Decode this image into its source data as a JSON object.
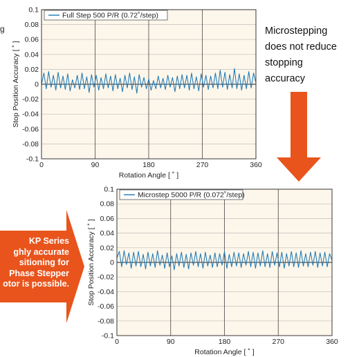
{
  "colors": {
    "series": "#1f78b4",
    "arrow": "#e8541c",
    "callout_text": "#ffffff"
  },
  "fragments": {
    "top_left": "g"
  },
  "note": {
    "lines": [
      "Microstepping",
      "does not reduce",
      "stopping",
      "accuracy"
    ]
  },
  "callout": {
    "lines": [
      "KP Series",
      "ghly accurate",
      "sitioning for",
      "Phase Stepper",
      "otor is possible."
    ]
  },
  "chart_data": [
    {
      "type": "line",
      "xlabel": "Rotation Angle [ ˚ ]",
      "ylabel": "Stop Position Accuracy [ ˚ ]",
      "xlim": [
        0,
        360
      ],
      "ylim": [
        -0.1,
        0.1
      ],
      "xticks": [
        "0",
        "90",
        "180",
        "270",
        "360"
      ],
      "yticks": [
        "0.1",
        "0.08",
        "0.06",
        "0.04",
        "0.02",
        "0",
        "-0.02",
        "-0.04",
        "-0.06",
        "-0.08",
        "-0.1"
      ],
      "grid": true,
      "legend_position": "top-left",
      "series": [
        {
          "name": "Full Step 500 P/R (0.72˚/step)",
          "x": [
            0,
            4,
            8,
            12,
            16,
            20,
            24,
            28,
            32,
            36,
            40,
            44,
            48,
            52,
            56,
            60,
            64,
            68,
            72,
            76,
            80,
            84,
            88,
            92,
            96,
            100,
            104,
            108,
            112,
            116,
            120,
            124,
            128,
            132,
            136,
            140,
            144,
            148,
            152,
            156,
            160,
            164,
            168,
            172,
            176,
            180,
            184,
            188,
            192,
            196,
            200,
            204,
            208,
            212,
            216,
            220,
            224,
            228,
            232,
            236,
            240,
            244,
            248,
            252,
            256,
            260,
            264,
            268,
            272,
            276,
            280,
            284,
            288,
            292,
            296,
            300,
            304,
            308,
            312,
            316,
            320,
            324,
            328,
            332,
            336,
            340,
            344,
            348,
            352,
            356,
            360
          ],
          "y": [
            0.0,
            0.015,
            -0.006,
            0.017,
            -0.004,
            0.012,
            -0.008,
            0.016,
            -0.005,
            0.011,
            -0.007,
            0.014,
            -0.009,
            0.006,
            -0.005,
            0.012,
            -0.007,
            0.015,
            -0.006,
            0.01,
            -0.011,
            0.013,
            -0.004,
            0.012,
            -0.008,
            0.009,
            -0.006,
            0.014,
            -0.005,
            0.011,
            -0.009,
            0.013,
            -0.006,
            0.008,
            -0.01,
            0.012,
            -0.005,
            0.015,
            -0.007,
            0.01,
            -0.012,
            0.013,
            -0.004,
            0.009,
            -0.006,
            0.007,
            -0.008,
            0.005,
            -0.006,
            0.011,
            -0.005,
            0.008,
            -0.007,
            0.012,
            -0.004,
            0.009,
            -0.01,
            0.011,
            -0.006,
            0.013,
            -0.005,
            0.012,
            -0.008,
            0.015,
            -0.006,
            0.01,
            -0.009,
            0.014,
            -0.004,
            0.012,
            -0.007,
            0.011,
            -0.005,
            0.015,
            -0.006,
            0.019,
            -0.004,
            0.016,
            -0.007,
            0.013,
            -0.005,
            0.021,
            -0.006,
            0.014,
            -0.008,
            0.012,
            -0.006,
            0.017,
            -0.005,
            0.015,
            0.002
          ]
        }
      ]
    },
    {
      "type": "line",
      "xlabel": "Rotation Angle [ ˚ ]",
      "ylabel": "Stop Position Accuracy [ ˚ ]",
      "xlim": [
        0,
        360
      ],
      "ylim": [
        -0.1,
        0.1
      ],
      "xticks": [
        "0",
        "90",
        "180",
        "270",
        "360"
      ],
      "yticks": [
        "0.1",
        "0.08",
        "0.06",
        "0.04",
        "0.02",
        "0",
        "-0.02",
        "-0.04",
        "-0.06",
        "-0.08",
        "-0.1"
      ],
      "grid": true,
      "legend_position": "top-left",
      "series": [
        {
          "name": "Microstep 5000 P/R (0.072˚/step)",
          "x": [
            0,
            4,
            8,
            12,
            16,
            20,
            24,
            28,
            32,
            36,
            40,
            44,
            48,
            52,
            56,
            60,
            64,
            68,
            72,
            76,
            80,
            84,
            88,
            92,
            96,
            100,
            104,
            108,
            112,
            116,
            120,
            124,
            128,
            132,
            136,
            140,
            144,
            148,
            152,
            156,
            160,
            164,
            168,
            172,
            176,
            180,
            184,
            188,
            192,
            196,
            200,
            204,
            208,
            212,
            216,
            220,
            224,
            228,
            232,
            236,
            240,
            244,
            248,
            252,
            256,
            260,
            264,
            268,
            272,
            276,
            280,
            284,
            288,
            292,
            296,
            300,
            304,
            308,
            312,
            316,
            320,
            324,
            328,
            332,
            336,
            340,
            344,
            348,
            352,
            356,
            360
          ],
          "y": [
            0.006,
            0.015,
            -0.006,
            0.016,
            -0.003,
            0.013,
            -0.008,
            0.014,
            -0.005,
            0.015,
            -0.006,
            0.011,
            -0.009,
            0.014,
            -0.005,
            0.012,
            -0.007,
            0.016,
            -0.004,
            0.01,
            -0.008,
            0.013,
            -0.006,
            0.009,
            -0.01,
            0.012,
            -0.005,
            0.014,
            -0.007,
            0.011,
            -0.009,
            0.013,
            -0.004,
            0.015,
            -0.006,
            0.012,
            -0.008,
            0.014,
            -0.005,
            0.01,
            -0.007,
            0.013,
            -0.006,
            0.012,
            -0.004,
            0.015,
            -0.008,
            0.011,
            -0.006,
            0.014,
            -0.005,
            0.013,
            -0.007,
            0.012,
            -0.004,
            0.015,
            -0.006,
            0.014,
            -0.008,
            0.013,
            -0.005,
            0.016,
            -0.006,
            0.012,
            -0.007,
            0.015,
            -0.004,
            0.013,
            -0.006,
            0.014,
            -0.008,
            0.012,
            -0.005,
            0.015,
            -0.006,
            0.013,
            -0.007,
            0.016,
            -0.005,
            0.012,
            -0.006,
            0.014,
            -0.004,
            0.015,
            -0.007,
            0.013,
            -0.005,
            0.014,
            -0.006,
            0.012,
            0.003
          ]
        }
      ]
    }
  ]
}
